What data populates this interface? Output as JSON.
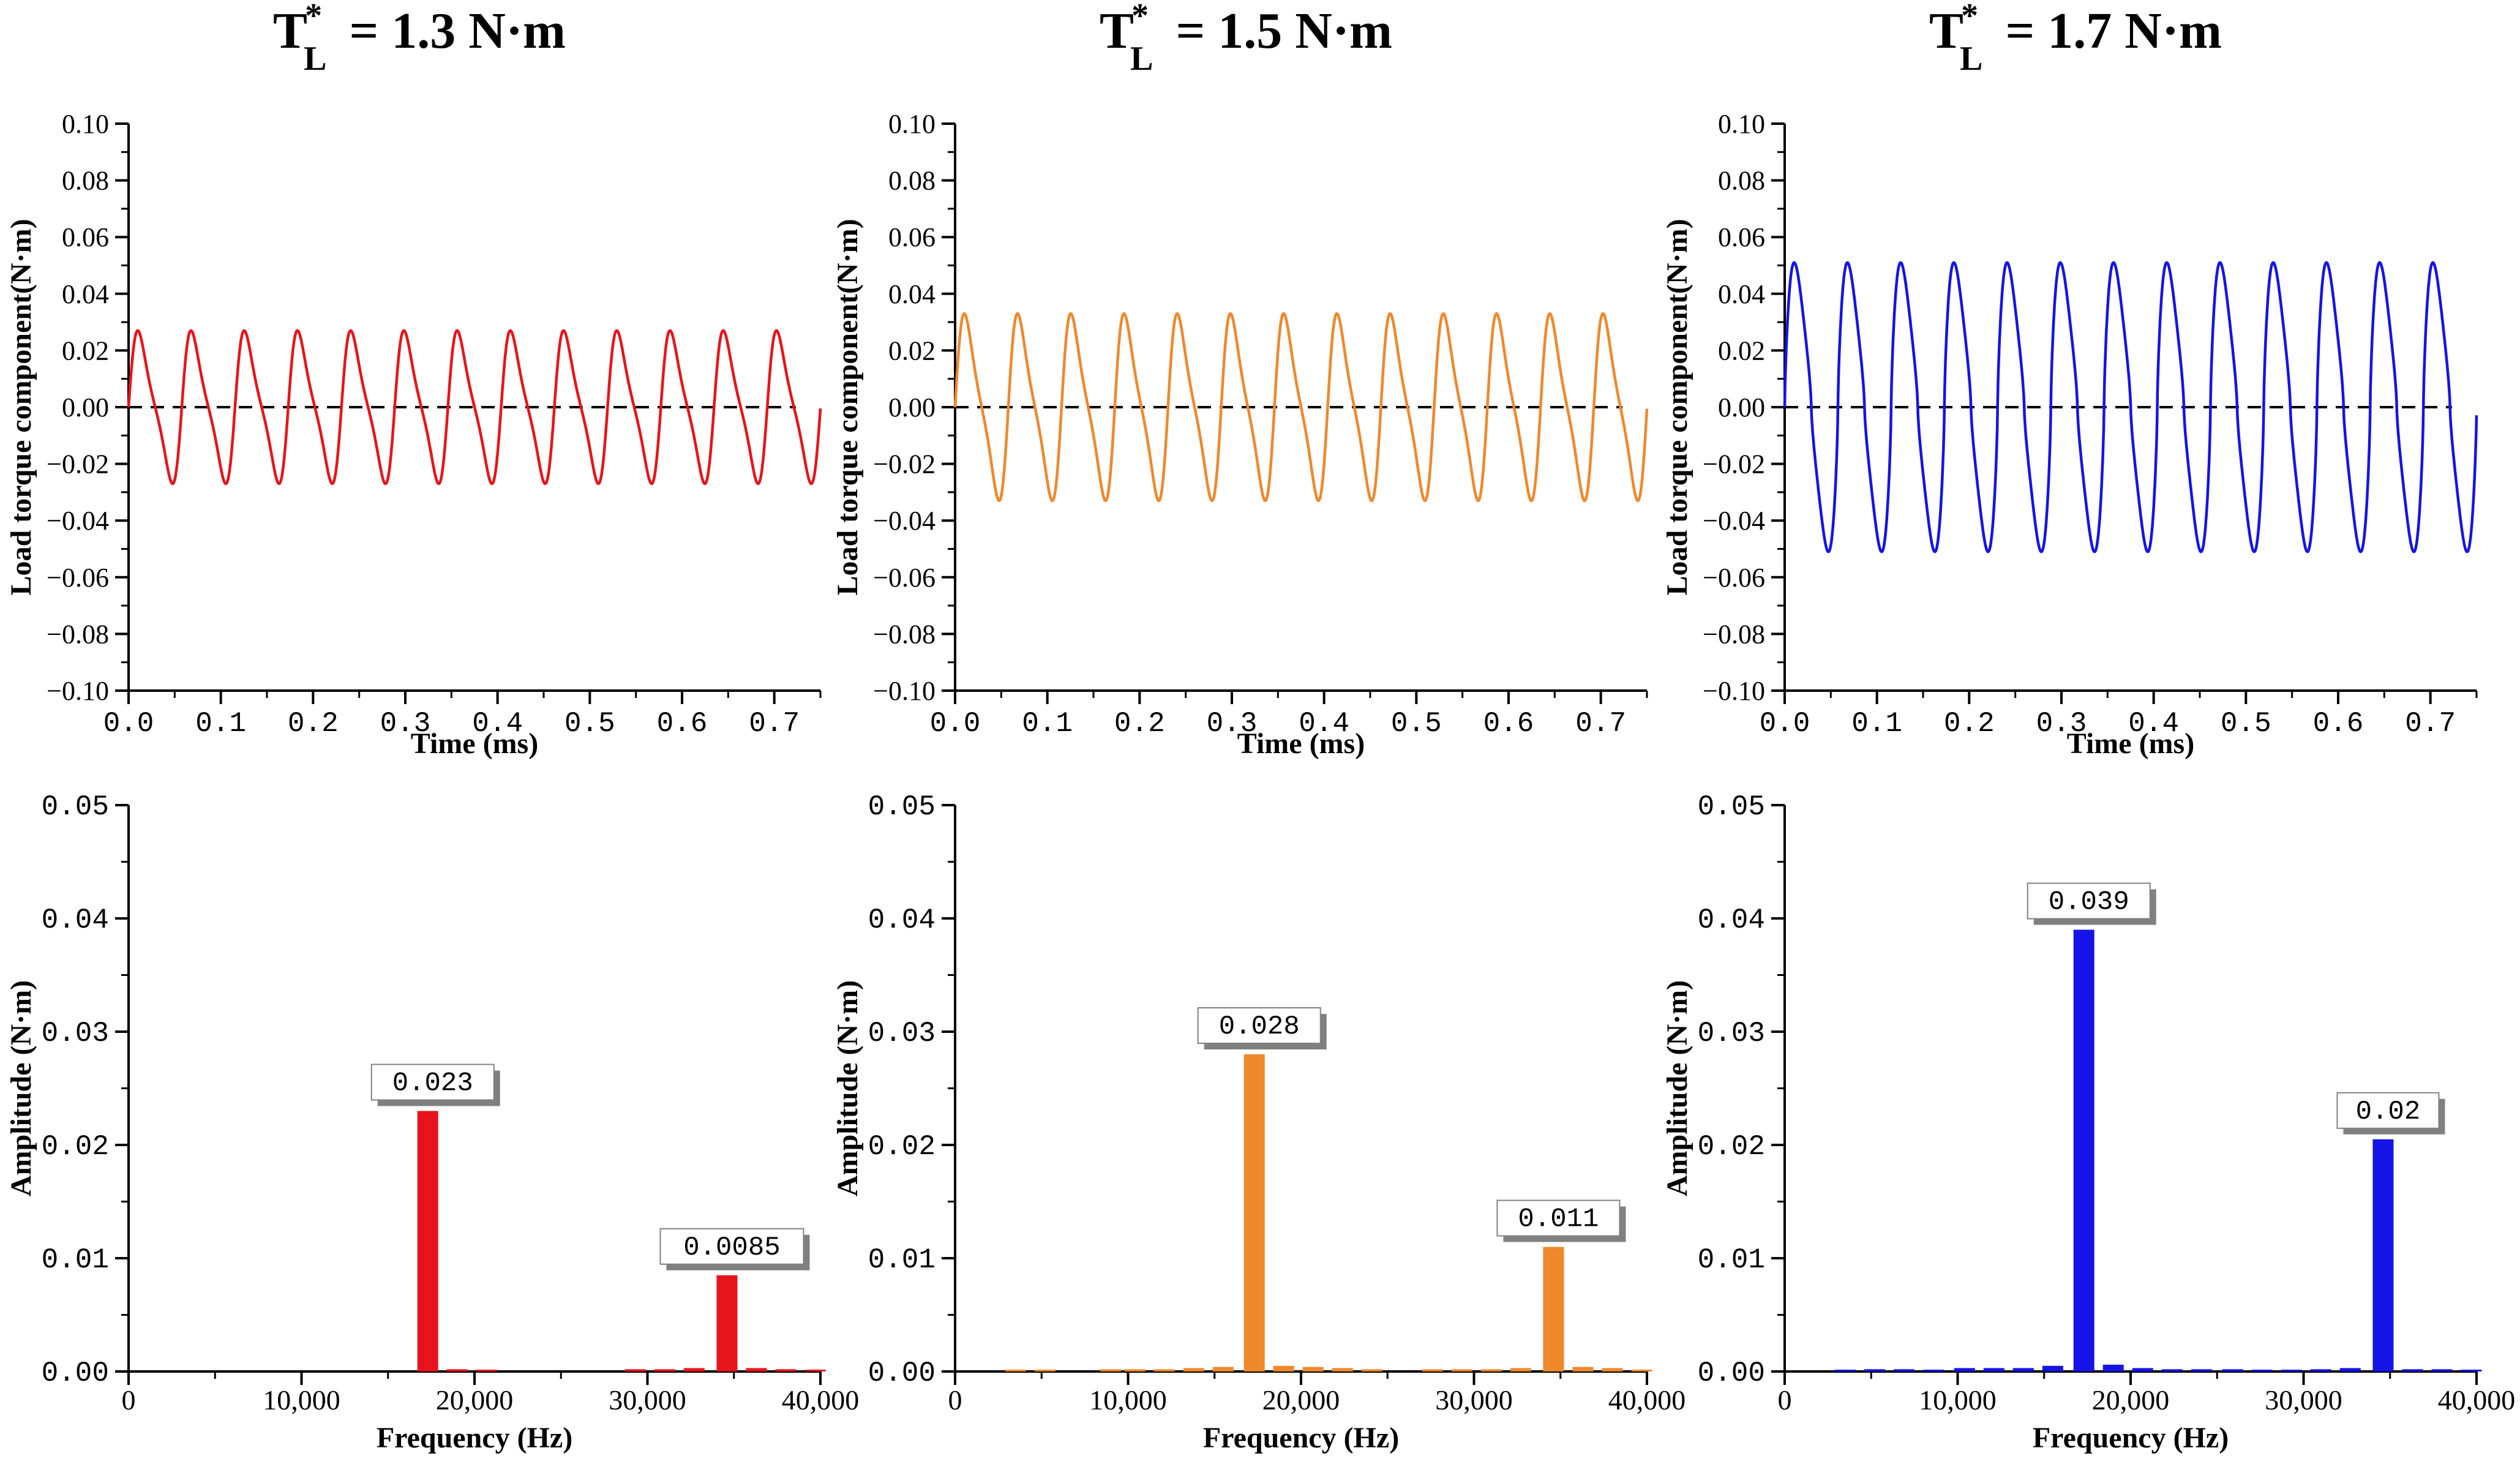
{
  "chart_data": [
    {
      "type": "line",
      "panel": "top-left",
      "title": "T*L = 1.3 N·m",
      "title_main": "T",
      "title_sup": "*",
      "title_sub": "L",
      "title_value": "= 1.3 N·m",
      "xlabel": "Time (ms)",
      "ylabel": "Load torque component(N·m)",
      "xlim": [
        0.0,
        0.75
      ],
      "ylim": [
        -0.1,
        0.1
      ],
      "x_ticks": [
        "0.0",
        "0.1",
        "0.2",
        "0.3",
        "0.4",
        "0.5",
        "0.6",
        "0.7"
      ],
      "y_ticks": [
        "-0.10",
        "-0.08",
        "-0.06",
        "-0.04",
        "-0.02",
        "0.00",
        "0.02",
        "0.04",
        "0.06",
        "0.08",
        "0.10"
      ],
      "color": "#e8141b",
      "series": [
        {
          "name": "Load torque component",
          "amplitude": 0.027,
          "period_ms": 0.0577,
          "waveform": "sinusoid"
        }
      ],
      "reference_line": {
        "y": 0.0,
        "style": "dashed",
        "color": "#000000"
      }
    },
    {
      "type": "line",
      "panel": "top-middle",
      "title": "T*L = 1.5 N·m",
      "title_main": "T",
      "title_sup": "*",
      "title_sub": "L",
      "title_value": "= 1.5 N·m",
      "xlabel": "Time (ms)",
      "ylabel": "Load torque component(N·m)",
      "xlim": [
        0.0,
        0.75
      ],
      "ylim": [
        -0.1,
        0.1
      ],
      "x_ticks": [
        "0.0",
        "0.1",
        "0.2",
        "0.3",
        "0.4",
        "0.5",
        "0.6",
        "0.7"
      ],
      "y_ticks": [
        "-0.10",
        "-0.08",
        "-0.06",
        "-0.04",
        "-0.02",
        "0.00",
        "0.02",
        "0.04",
        "0.06",
        "0.08",
        "0.10"
      ],
      "color": "#f0882c",
      "series": [
        {
          "name": "Load torque component",
          "amplitude": 0.033,
          "period_ms": 0.0577,
          "waveform": "sinusoid"
        }
      ],
      "reference_line": {
        "y": 0.0,
        "style": "dashed",
        "color": "#000000"
      }
    },
    {
      "type": "line",
      "panel": "top-right",
      "title": "T*L = 1.7 N·m",
      "title_main": "T",
      "title_sup": "*",
      "title_sub": "L",
      "title_value": "= 1.7 N·m",
      "xlabel": "Time (ms)",
      "ylabel": "Load torque component(N·m)",
      "xlim": [
        0.0,
        0.75
      ],
      "ylim": [
        -0.1,
        0.1
      ],
      "x_ticks": [
        "0.0",
        "0.1",
        "0.2",
        "0.3",
        "0.4",
        "0.5",
        "0.6",
        "0.7"
      ],
      "y_ticks": [
        "-0.10",
        "-0.08",
        "-0.06",
        "-0.04",
        "-0.02",
        "0.00",
        "0.02",
        "0.04",
        "0.06",
        "0.08",
        "0.10"
      ],
      "color": "#1414e6",
      "series": [
        {
          "name": "Load torque component",
          "amplitude": 0.051,
          "period_ms": 0.0577,
          "waveform": "flattened-sinusoid"
        }
      ],
      "reference_line": {
        "y": 0.0,
        "style": "dashed",
        "color": "#000000"
      }
    },
    {
      "type": "bar",
      "panel": "bottom-left",
      "xlabel": "Frequency (Hz)",
      "ylabel": "Amplitude (N·m)",
      "xlim": [
        0,
        40000
      ],
      "ylim": [
        0.0,
        0.05
      ],
      "x_ticks": [
        "0",
        "10,000",
        "20,000",
        "30,000",
        "40,000"
      ],
      "y_ticks": [
        "0.00",
        "0.01",
        "0.02",
        "0.03",
        "0.04",
        "0.05"
      ],
      "color": "#e8141b",
      "x": [
        17300,
        19000,
        20700,
        29300,
        31000,
        32700,
        34600,
        36300,
        38000,
        39700
      ],
      "values": [
        0.023,
        0.0002,
        0.0001,
        0.0002,
        0.0002,
        0.0003,
        0.0085,
        0.0003,
        0.0002,
        0.0001
      ],
      "annotations": [
        {
          "x": 17300,
          "value": 0.023,
          "label": "0.023"
        },
        {
          "x": 34600,
          "value": 0.0085,
          "label": "0.0085"
        }
      ]
    },
    {
      "type": "bar",
      "panel": "bottom-middle",
      "xlabel": "Frequency (Hz)",
      "ylabel": "Amplitude (N·m)",
      "xlim": [
        0,
        40000
      ],
      "ylim": [
        0.0,
        0.05
      ],
      "x_ticks": [
        "0",
        "10,000",
        "20,000",
        "30,000",
        "40,000"
      ],
      "y_ticks": [
        "0.00",
        "0.01",
        "0.02",
        "0.03",
        "0.04",
        "0.05"
      ],
      "color": "#f0882c",
      "x": [
        3500,
        5200,
        9000,
        10400,
        12100,
        13800,
        15500,
        17300,
        19000,
        20700,
        22400,
        24100,
        27600,
        29300,
        31000,
        32700,
        34600,
        36300,
        38000,
        39700
      ],
      "values": [
        0.0001,
        0.0001,
        0.0002,
        0.0002,
        0.0002,
        0.0003,
        0.0004,
        0.028,
        0.0005,
        0.0004,
        0.0003,
        0.0002,
        0.0002,
        0.0002,
        0.0002,
        0.0003,
        0.011,
        0.0004,
        0.0003,
        0.0001
      ],
      "annotations": [
        {
          "x": 17300,
          "value": 0.028,
          "label": "0.028"
        },
        {
          "x": 34600,
          "value": 0.011,
          "label": "0.011"
        }
      ]
    },
    {
      "type": "bar",
      "panel": "bottom-right",
      "xlabel": "Frequency (Hz)",
      "ylabel": "Amplitude (N·m)",
      "xlim": [
        0,
        40000
      ],
      "ylim": [
        0.0,
        0.05
      ],
      "x_ticks": [
        "0",
        "10,000",
        "20,000",
        "30,000",
        "40,000"
      ],
      "y_ticks": [
        "0.00",
        "0.01",
        "0.02",
        "0.03",
        "0.04",
        "0.05"
      ],
      "color": "#1414e6",
      "x": [
        3500,
        5200,
        6900,
        8600,
        10400,
        12100,
        13800,
        15500,
        17300,
        19000,
        20700,
        22400,
        24100,
        25900,
        27600,
        29300,
        31000,
        32700,
        34600,
        36300,
        38000,
        39700
      ],
      "values": [
        0.0001,
        0.0002,
        0.0002,
        0.0001,
        0.0003,
        0.0003,
        0.0003,
        0.0005,
        0.039,
        0.0006,
        0.0003,
        0.0002,
        0.0002,
        0.0002,
        0.0001,
        0.0001,
        0.0002,
        0.0003,
        0.0205,
        0.0002,
        0.0002,
        0.0001
      ],
      "annotations": [
        {
          "x": 17300,
          "value": 0.039,
          "label": "0.039"
        },
        {
          "x": 34600,
          "value": 0.0205,
          "label": "0.02"
        }
      ]
    }
  ]
}
